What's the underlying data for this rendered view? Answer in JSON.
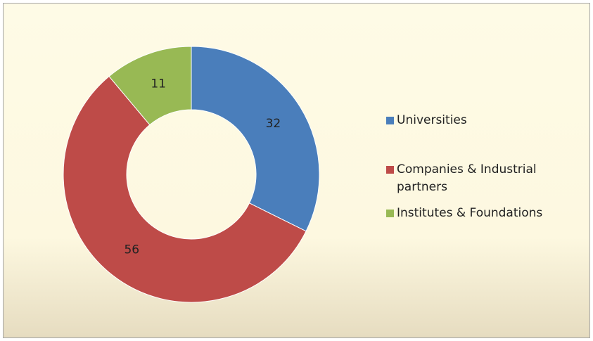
{
  "chart_data": {
    "type": "donut",
    "categories": [
      "Universities",
      "Companies & Industrial partners",
      "Institutes & Foundations"
    ],
    "values": [
      32,
      56,
      11
    ],
    "colors": [
      "#4a7ebb",
      "#be4b48",
      "#98b954"
    ]
  }
}
